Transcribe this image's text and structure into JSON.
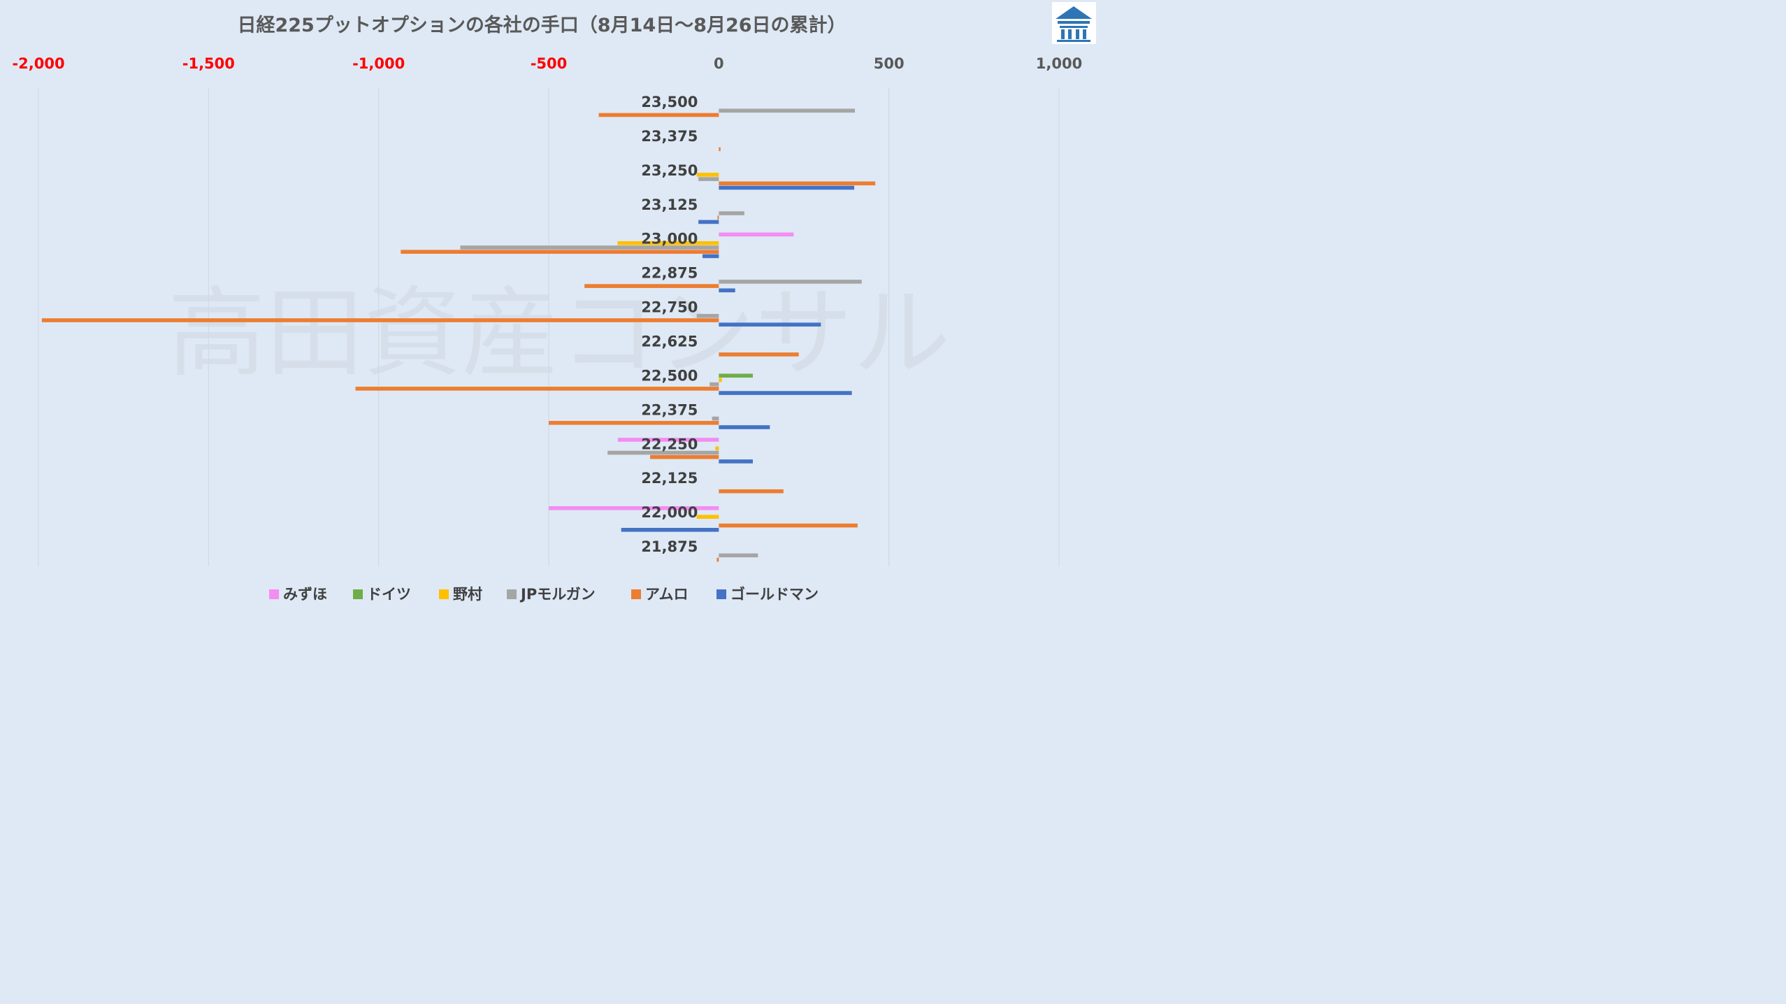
{
  "chart_data": {
    "type": "bar",
    "orientation": "horizontal",
    "title": "日経225プットオプションの各社の手口（8月14日～8月26日の累計）",
    "xlim": [
      -2000,
      1000
    ],
    "ticks": [
      -2000,
      -1500,
      -1000,
      -500,
      0,
      500,
      1000
    ],
    "tick_labels": [
      "-2,000",
      "-1,500",
      "-1,000",
      "-500",
      "0",
      "500",
      "1,000"
    ],
    "negative_tick_color": "#ff0000",
    "positive_tick_color": "#595959",
    "grid": true,
    "legend_position": "bottom",
    "categories": [
      "23,500",
      "23,375",
      "23,250",
      "23,125",
      "23,000",
      "22,875",
      "22,750",
      "22,625",
      "22,500",
      "22,375",
      "22,250",
      "22,125",
      "22,000",
      "21,875"
    ],
    "series": [
      {
        "name": "みずほ",
        "color": "#f48cf2",
        "values": [
          0,
          0,
          0,
          0,
          220,
          0,
          0,
          0,
          0,
          0,
          -297,
          0,
          -500,
          0
        ]
      },
      {
        "name": "ドイツ",
        "color": "#70ad47",
        "values": [
          0,
          0,
          0,
          0,
          0,
          0,
          0,
          0,
          100,
          0,
          0,
          0,
          0,
          0
        ]
      },
      {
        "name": "野村",
        "color": "#ffc000",
        "values": [
          0,
          0,
          -65,
          0,
          -298,
          0,
          0,
          0,
          9,
          0,
          -10,
          0,
          -65,
          0
        ]
      },
      {
        "name": "JPモルガン",
        "color": "#a5a5a5",
        "values": [
          400,
          0,
          -60,
          75,
          -760,
          420,
          -65,
          0,
          -27,
          -20,
          -327,
          0,
          0,
          115
        ]
      },
      {
        "name": "アムロ",
        "color": "#ed7d31",
        "values": [
          -353,
          5,
          460,
          -4,
          -935,
          -395,
          -1990,
          235,
          -1068,
          -500,
          -202,
          190,
          408,
          -6
        ]
      },
      {
        "name": "ゴールドマン",
        "color": "#4472c4",
        "values": [
          0,
          0,
          398,
          -60,
          -48,
          48,
          300,
          0,
          391,
          150,
          100,
          0,
          -287,
          0
        ]
      }
    ]
  },
  "watermark": "高田資産コンサル",
  "logo": {
    "name": "building-logo-icon",
    "color": "#2e75b6"
  }
}
